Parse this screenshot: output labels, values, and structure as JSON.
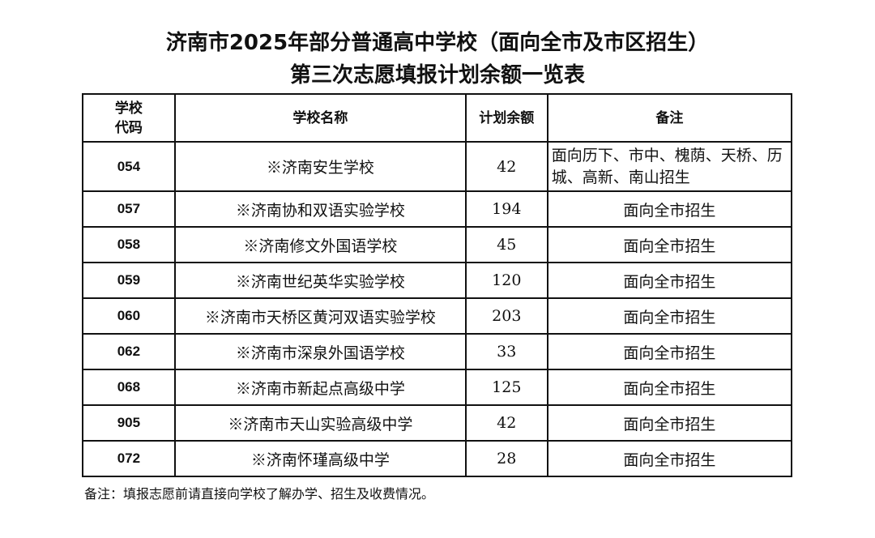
{
  "title": {
    "line1": "济南市2025年部分普通高中学校（面向全市及市区招生）",
    "line2": "第三次志愿填报计划余额一览表"
  },
  "table": {
    "headers": {
      "code": "学校代码",
      "name": "学校名称",
      "remaining": "计划余额",
      "note": "备注"
    },
    "rows": [
      {
        "code": "054",
        "name": "※济南安生学校",
        "remaining": "42",
        "note": "面向历下、市中、槐荫、天桥、历城、高新、南山招生"
      },
      {
        "code": "057",
        "name": "※济南协和双语实验学校",
        "remaining": "194",
        "note": "面向全市招生"
      },
      {
        "code": "058",
        "name": "※济南修文外国语学校",
        "remaining": "45",
        "note": "面向全市招生"
      },
      {
        "code": "059",
        "name": "※济南世纪英华实验学校",
        "remaining": "120",
        "note": "面向全市招生"
      },
      {
        "code": "060",
        "name": "※济南市天桥区黄河双语实验学校",
        "remaining": "203",
        "note": "面向全市招生"
      },
      {
        "code": "062",
        "name": "※济南市深泉外国语学校",
        "remaining": "33",
        "note": "面向全市招生"
      },
      {
        "code": "068",
        "name": "※济南市新起点高级中学",
        "remaining": "125",
        "note": "面向全市招生"
      },
      {
        "code": "905",
        "name": "※济南市天山实验高级中学",
        "remaining": "42",
        "note": "面向全市招生"
      },
      {
        "code": "072",
        "name": "※济南怀瑾高级中学",
        "remaining": "28",
        "note": "面向全市招生"
      }
    ]
  },
  "footnote": "备注：填报志愿前请直接向学校了解办学、招生及收费情况。"
}
